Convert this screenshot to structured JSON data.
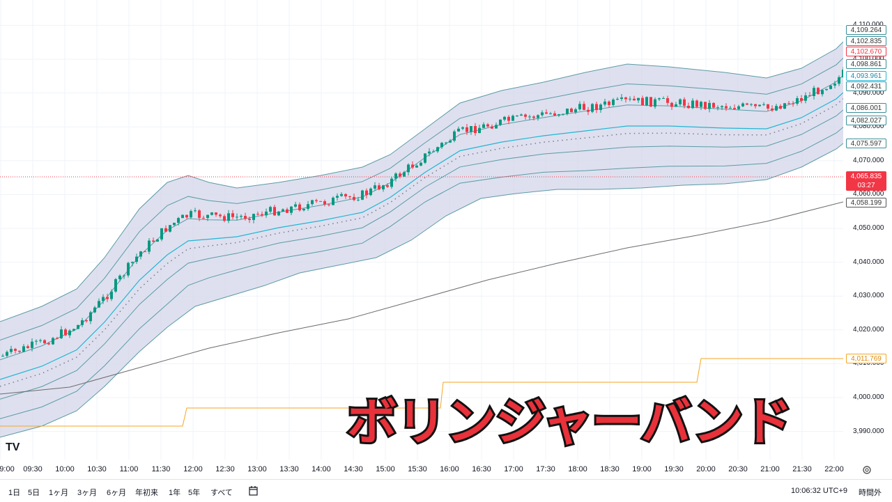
{
  "price_axis": {
    "ticks": [
      "4,110.000",
      "4,100.000",
      "4,090.000",
      "4,080.000",
      "4,070.000",
      "4,060.000",
      "4,050.000",
      "4,040.000",
      "4,030.000",
      "4,020.000",
      "4,010.000",
      "4,000.000",
      "3,990.000"
    ],
    "tags": {
      "upper_outer": "4,109.264",
      "upper_mid": "4,102.835",
      "last_close": "4,102.670",
      "upper_inner": "4,098.861",
      "basis": "4,093.961",
      "lower_inner": "4,092.431",
      "lower_mid": "4,086.001",
      "lower_outer": "4,082.027",
      "lower_band": "4,075.597",
      "current_price": "4,065.835",
      "countdown": "03:27",
      "long_ma": "4,058.199",
      "step_line": "4,011.769"
    }
  },
  "time_axis": [
    "9:00",
    "09:30",
    "10:00",
    "10:30",
    "11:00",
    "11:30",
    "12:00",
    "12:30",
    "13:00",
    "13:30",
    "14:00",
    "14:30",
    "15:00",
    "15:30",
    "16:00",
    "16:30",
    "17:00",
    "17:30",
    "18:00",
    "18:30",
    "19:00",
    "19:30",
    "20:00",
    "20:30",
    "21:00",
    "21:30",
    "22:00"
  ],
  "bottom_bar": {
    "ranges": [
      "1日",
      "5日",
      "1ヶ月",
      "3ヶ月",
      "6ヶ月",
      "年初来",
      "1年",
      "5年",
      "すべて"
    ],
    "clock": "10:06:32 UTC+9",
    "session": "時間外"
  },
  "caption": "ボリンジャーバンド",
  "logo": "TV",
  "colors": {
    "up": "#089981",
    "down": "#f23645",
    "band_fill": "#d3d5ea",
    "band_line": "#5b9aa5",
    "basis": "#22b5d4",
    "long_ma": "#6b6b6b",
    "step_line": "#f5a623",
    "caption": "#e8313a"
  },
  "icons": [
    "tradingview-logo-icon",
    "date-range-icon",
    "settings-icon"
  ]
}
